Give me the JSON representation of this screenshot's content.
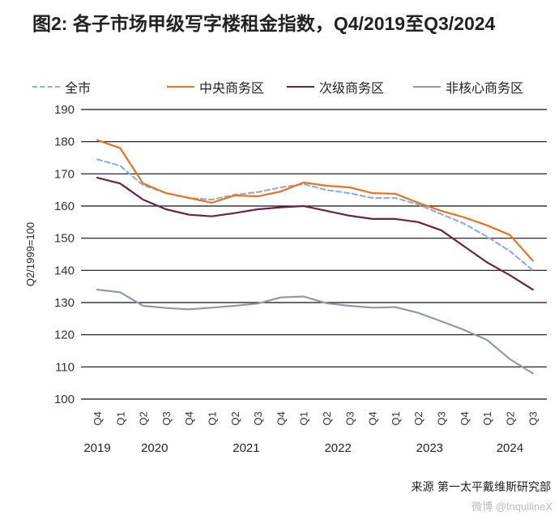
{
  "title": "图2: 各子市场甲级写字楼租金指数，Q4/2019至Q3/2024",
  "source": "来源    第一太平戴维斯研究部",
  "watermark": "微博 @InquilineX",
  "chart_data": {
    "type": "line",
    "title": "图2: 各子市场甲级写字楼租金指数，Q4/2019至Q3/2024",
    "ylabel": "Q2/1999=100",
    "xlabel": "",
    "ylim": [
      100,
      190
    ],
    "yticks": [
      100,
      110,
      120,
      130,
      140,
      150,
      160,
      170,
      180,
      190
    ],
    "grid": "horizontal",
    "legend_position": "top",
    "x": [
      "Q4",
      "Q1",
      "Q2",
      "Q3",
      "Q4",
      "Q1",
      "Q2",
      "Q3",
      "Q4",
      "Q1",
      "Q2",
      "Q3",
      "Q4",
      "Q1",
      "Q2",
      "Q3",
      "Q4",
      "Q1",
      "Q2",
      "Q3"
    ],
    "years": [
      {
        "label": "2019",
        "from": 0,
        "to": 0
      },
      {
        "label": "2020",
        "from": 1,
        "to": 4
      },
      {
        "label": "2021",
        "from": 5,
        "to": 8
      },
      {
        "label": "2022",
        "from": 9,
        "to": 12
      },
      {
        "label": "2023",
        "from": 13,
        "to": 16
      },
      {
        "label": "2024",
        "from": 17,
        "to": 19
      }
    ],
    "series": [
      {
        "name": "全市",
        "color": "#93AEDB",
        "style": "dashed",
        "values": [
          174.5,
          172.5,
          166.5,
          164.0,
          162.5,
          162.0,
          163.5,
          164.3,
          165.8,
          166.8,
          165.0,
          164.0,
          162.5,
          162.5,
          160.5,
          157.5,
          154.5,
          150.5,
          146.0,
          140.0
        ]
      },
      {
        "name": "中央商务区",
        "color": "#E8731F",
        "style": "solid",
        "values": [
          180.5,
          178.0,
          167.0,
          164.0,
          162.5,
          161.0,
          163.3,
          163.0,
          164.5,
          167.3,
          166.3,
          165.8,
          164.0,
          163.8,
          161.0,
          158.5,
          156.5,
          154.0,
          151.0,
          143.0
        ]
      },
      {
        "name": "次级商务区",
        "color": "#6B2440",
        "style": "solid",
        "values": [
          168.8,
          167.0,
          162.0,
          159.0,
          157.3,
          156.8,
          157.8,
          159.0,
          159.6,
          160.0,
          158.5,
          157.0,
          156.0,
          156.0,
          155.0,
          152.5,
          147.5,
          142.5,
          138.5,
          134.0
        ]
      },
      {
        "name": "非核心商务区",
        "color": "#8E9BA4",
        "style": "solid",
        "values": [
          134.0,
          133.2,
          129.0,
          128.3,
          127.9,
          128.4,
          129.0,
          129.7,
          131.6,
          131.9,
          129.8,
          129.0,
          128.4,
          128.6,
          126.8,
          124.2,
          121.5,
          118.4,
          112.4,
          108.0
        ]
      }
    ]
  }
}
